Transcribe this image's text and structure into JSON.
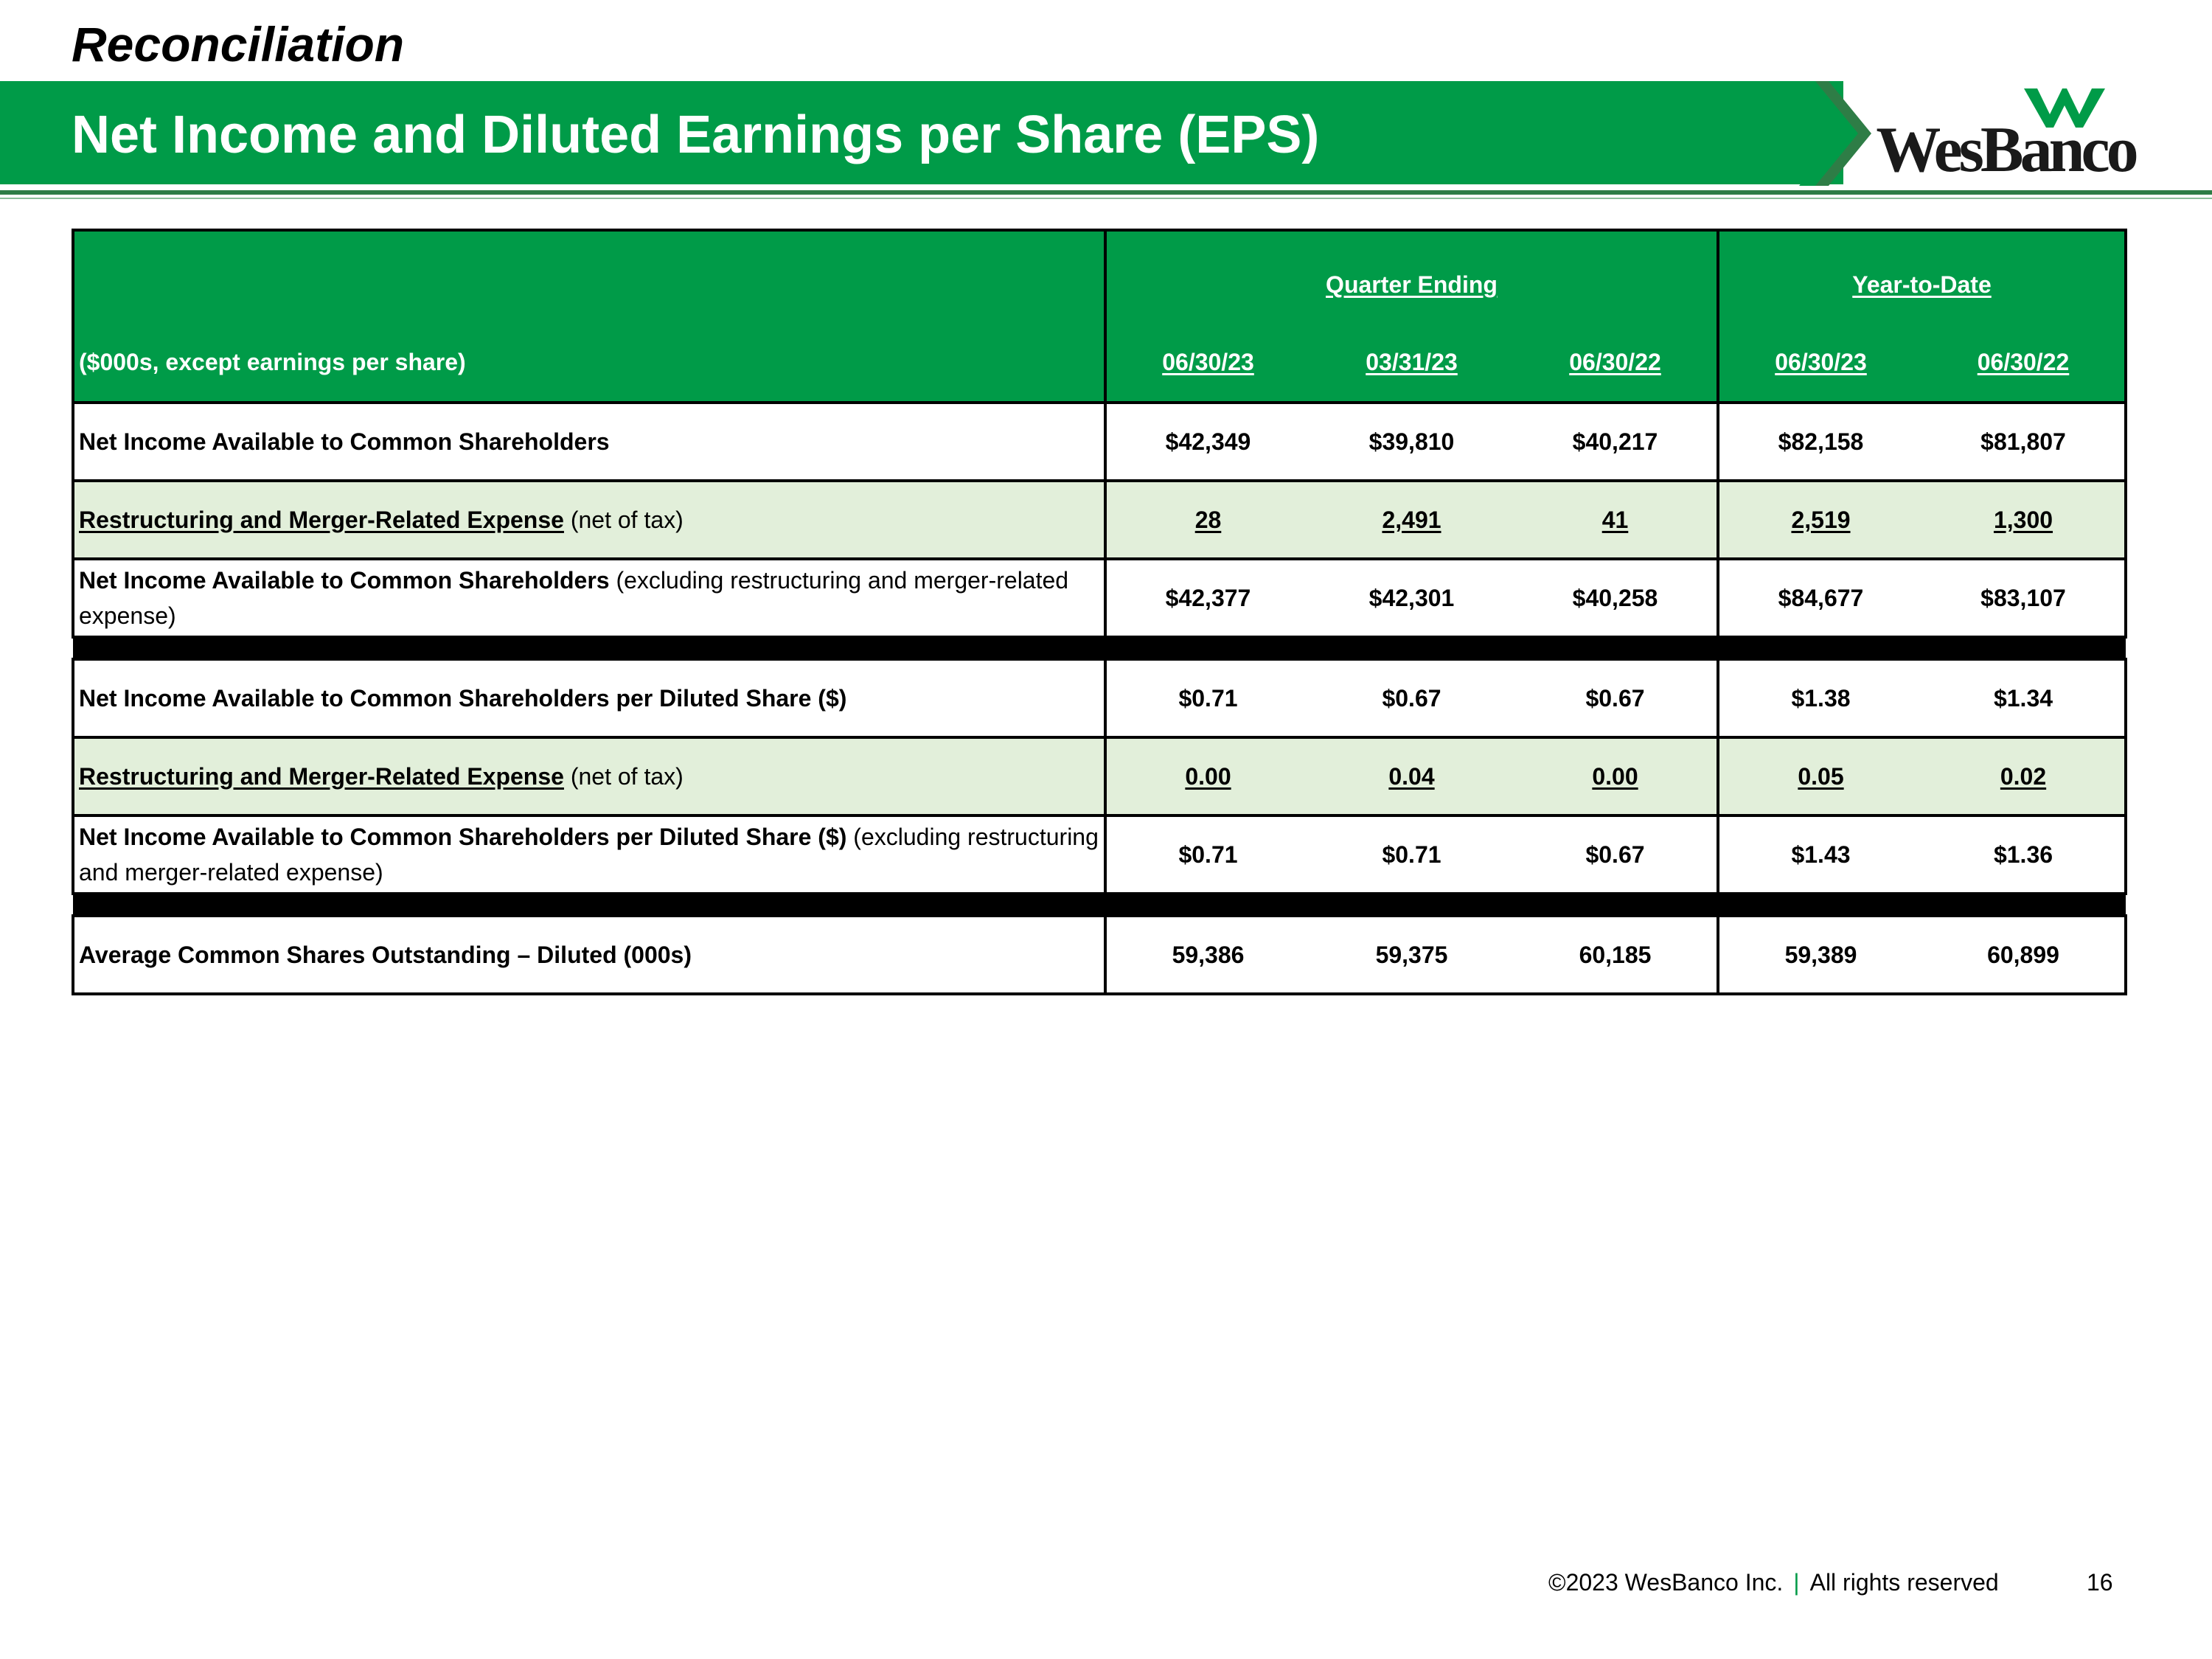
{
  "slide": {
    "section_label": "Reconciliation",
    "title": "Net Income and Diluted Earnings per Share (EPS)",
    "logo_text": "WesBanco",
    "brand_color": "#009b48",
    "footer_copyright": "©2023 WesBanco Inc.",
    "footer_separator": "|",
    "footer_rights": "All rights reserved",
    "page_number": "16"
  },
  "table": {
    "group_quarter": "Quarter Ending",
    "group_ytd": "Year-to-Date",
    "units_label": "($000s, except earnings per share)",
    "columns": [
      "06/30/23",
      "03/31/23",
      "06/30/22",
      "06/30/23",
      "06/30/22"
    ],
    "rows": [
      {
        "label_bold": "Net Income Available to Common Shareholders",
        "label_rest": "",
        "values": [
          "$42,349",
          "$39,810",
          "$40,217",
          "$82,158",
          "$81,807"
        ]
      },
      {
        "label_bold": "Restructuring and Merger-Related Expense",
        "label_rest": " (net of tax)",
        "values": [
          "28",
          "2,491",
          "41",
          "2,519",
          "1,300"
        ]
      },
      {
        "label_bold": "Net Income Available to Common Shareholders",
        "label_rest": " (excluding restructuring and merger-related expense)",
        "values": [
          "$42,377",
          "$42,301",
          "$40,258",
          "$84,677",
          "$83,107"
        ]
      },
      {
        "label_bold": "Net Income Available to Common Shareholders per Diluted Share ($)",
        "label_rest": "",
        "values": [
          "$0.71",
          "$0.67",
          "$0.67",
          "$1.38",
          "$1.34"
        ]
      },
      {
        "label_bold": "Restructuring and Merger-Related Expense",
        "label_rest": " (net of tax)",
        "values": [
          "0.00",
          "0.04",
          "0.00",
          "0.05",
          "0.02"
        ]
      },
      {
        "label_bold": "Net Income Available to Common Shareholders per Diluted Share ($)",
        "label_rest": " (excluding restructuring and merger-related expense)",
        "values": [
          "$0.71",
          "$0.71",
          "$0.67",
          "$1.43",
          "$1.36"
        ]
      },
      {
        "label_bold": "Average Common Shares Outstanding – Diluted (000s)",
        "label_rest": "",
        "values": [
          "59,386",
          "59,375",
          "60,185",
          "59,389",
          "60,899"
        ]
      }
    ]
  }
}
